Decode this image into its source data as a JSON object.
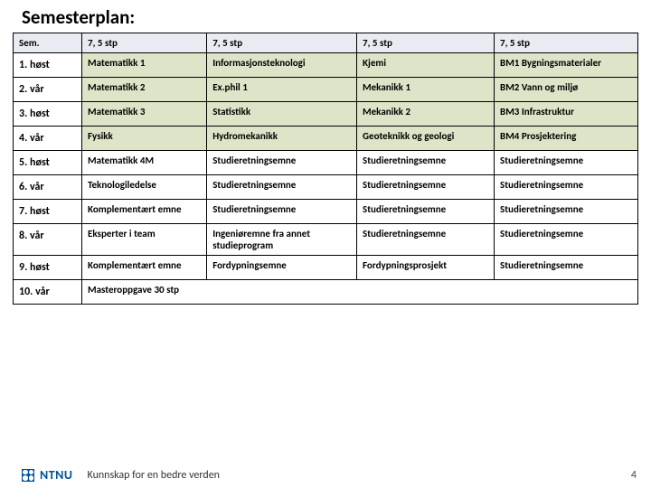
{
  "title": "Semesterplan:",
  "header": {
    "c1": "Sem.",
    "c2": "7, 5 stp",
    "c3": "7, 5 stp",
    "c4": "7, 5 stp",
    "c5": "7, 5 stp"
  },
  "rows": [
    {
      "sem": "1. høst",
      "c2": "Matematikk 1",
      "c3": "Informasjonsteknologi",
      "c4": "Kjemi",
      "c5": "BM1 Bygningsmaterialer",
      "core": true
    },
    {
      "sem": "2. vår",
      "c2": "Matematikk 2",
      "c3": "Ex.phil 1",
      "c4": "Mekanikk 1",
      "c5": "BM2 Vann og miljø",
      "core": true
    },
    {
      "sem": "3. høst",
      "c2": "Matematikk 3",
      "c3": "Statistikk",
      "c4": "Mekanikk 2",
      "c5": "BM3 Infrastruktur",
      "core": true
    },
    {
      "sem": "4. vår",
      "c2": "Fysikk",
      "c3": "Hydromekanikk",
      "c4": "Geoteknikk og geologi",
      "c5": "BM4 Prosjektering",
      "core": true
    },
    {
      "sem": "5. høst",
      "c2": "Matematikk 4M",
      "c3": "Studieretningsemne",
      "c4": "Studieretningsemne",
      "c5": "Studieretningsemne",
      "core": false
    },
    {
      "sem": "6. vår",
      "c2": "Teknologiledelse",
      "c3": "Studieretningsemne",
      "c4": "Studieretningsemne",
      "c5": "Studieretningsemne",
      "core": false
    },
    {
      "sem": "7. høst",
      "c2": "Komplementært emne",
      "c3": "Studieretningsemne",
      "c4": "Studieretningsemne",
      "c5": "Studieretningsemne",
      "core": false
    },
    {
      "sem": "8. vår",
      "c2": "Eksperter i team",
      "c3": "Ingeniøremne fra annet studieprogram",
      "c4": "Studieretningsemne",
      "c5": "Studieretningsemne",
      "core": false
    },
    {
      "sem": "9. høst",
      "c2": "Komplementært emne",
      "c3": "Fordypningsemne",
      "c4": "Fordypningsprosjekt",
      "c5": "Studieretningsemne",
      "core": false
    }
  ],
  "lastRow": {
    "sem": "10. vår",
    "span": "Masteroppgave 30 stp"
  },
  "footer": {
    "org": "NTNU",
    "tagline": "Kunnskap for en bedre verden",
    "page": "4"
  },
  "colors": {
    "header_bg": "#e8ecf2",
    "core_bg": "#dde4c8",
    "border": "#000000",
    "ntnu_blue": "#00509e"
  }
}
